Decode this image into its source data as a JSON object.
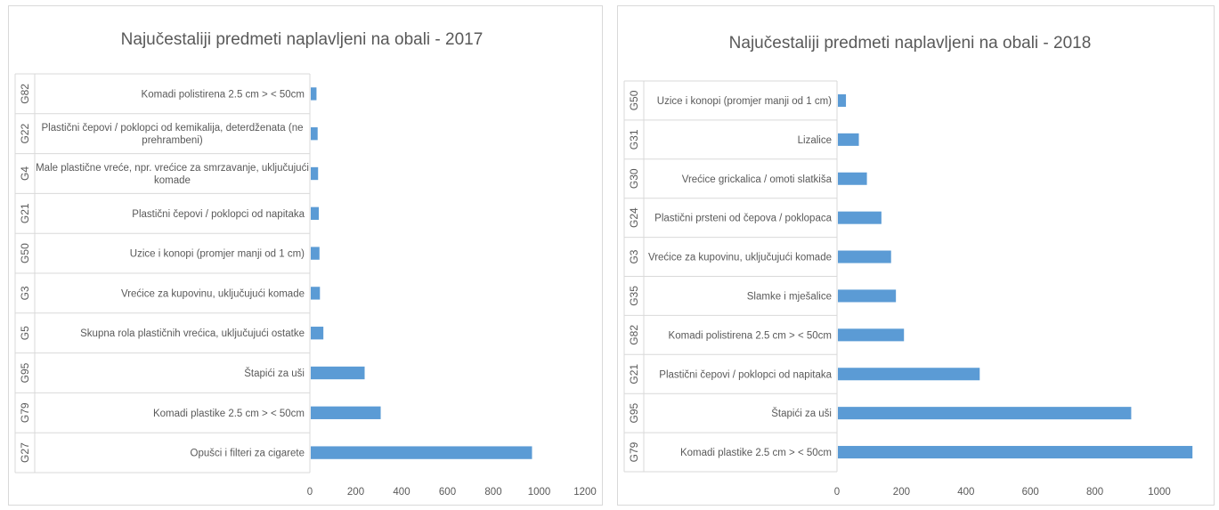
{
  "chart_data": [
    {
      "type": "bar",
      "orientation": "horizontal",
      "title": "Najučestaliji predmeti naplavljeni na obali - 2017",
      "xlim": [
        0,
        1200
      ],
      "xticks": [
        0,
        200,
        400,
        600,
        800,
        1000,
        1200
      ],
      "legend": "none",
      "grid": false,
      "categories": [
        {
          "code": "G82",
          "label": [
            "Komadi polistirena 2.5 cm > < 50cm"
          ]
        },
        {
          "code": "G22",
          "label": [
            "Plastični čepovi / poklopci od kemikalija, deterdženata (ne",
            "prehrambeni)"
          ]
        },
        {
          "code": "G4",
          "label": [
            "Male plastične vreće, npr. vrećice za smrzavanje, uključujući",
            "komade"
          ]
        },
        {
          "code": "G21",
          "label": [
            "Plastični čepovi / poklopci od napitaka"
          ]
        },
        {
          "code": "G50",
          "label": [
            "Uzice i konopi (promjer manji od 1 cm)"
          ]
        },
        {
          "code": "G3",
          "label": [
            "Vrećice za kupovinu, uključujući komade"
          ]
        },
        {
          "code": "G5",
          "label": [
            "Skupna rola plastičnih vrećica, uključujući ostatke"
          ]
        },
        {
          "code": "G95",
          "label": [
            "Štapići za uši"
          ]
        },
        {
          "code": "G79",
          "label": [
            "Komadi plastike 2.5 cm > < 50cm"
          ]
        },
        {
          "code": "G27",
          "label": [
            "Opušci i filteri za cigarete"
          ]
        }
      ],
      "values": [
        25,
        30,
        32,
        35,
        38,
        40,
        55,
        235,
        305,
        965
      ]
    },
    {
      "type": "bar",
      "orientation": "horizontal",
      "title": "Najučestaliji predmeti naplavljeni na obali - 2018",
      "xlim": [
        0,
        1100
      ],
      "xticks": [
        0,
        200,
        400,
        600,
        800,
        1000
      ],
      "legend": "none",
      "grid": false,
      "categories": [
        {
          "code": "G50",
          "label": [
            "Uzice i konopi (promjer manji od 1 cm)"
          ]
        },
        {
          "code": "G31",
          "label": [
            "Lizalice"
          ]
        },
        {
          "code": "G30",
          "label": [
            "Vrećice grickalica / omoti slatkiša"
          ]
        },
        {
          "code": "G24",
          "label": [
            "Plastični prsteni od čepova / poklopaca"
          ]
        },
        {
          "code": "G3",
          "label": [
            "Vrećice za kupovinu, uključujući komade"
          ]
        },
        {
          "code": "G35",
          "label": [
            "Slamke i mješalice"
          ]
        },
        {
          "code": "G82",
          "label": [
            "Komadi polistirena 2.5 cm > < 50cm"
          ]
        },
        {
          "code": "G21",
          "label": [
            "Plastični čepovi / poklopci od napitaka"
          ]
        },
        {
          "code": "G95",
          "label": [
            "Štapići za uši"
          ]
        },
        {
          "code": "G79",
          "label": [
            "Komadi plastike 2.5 cm > < 50cm"
          ]
        }
      ],
      "values": [
        25,
        65,
        90,
        135,
        165,
        180,
        205,
        440,
        910,
        1100
      ]
    }
  ]
}
